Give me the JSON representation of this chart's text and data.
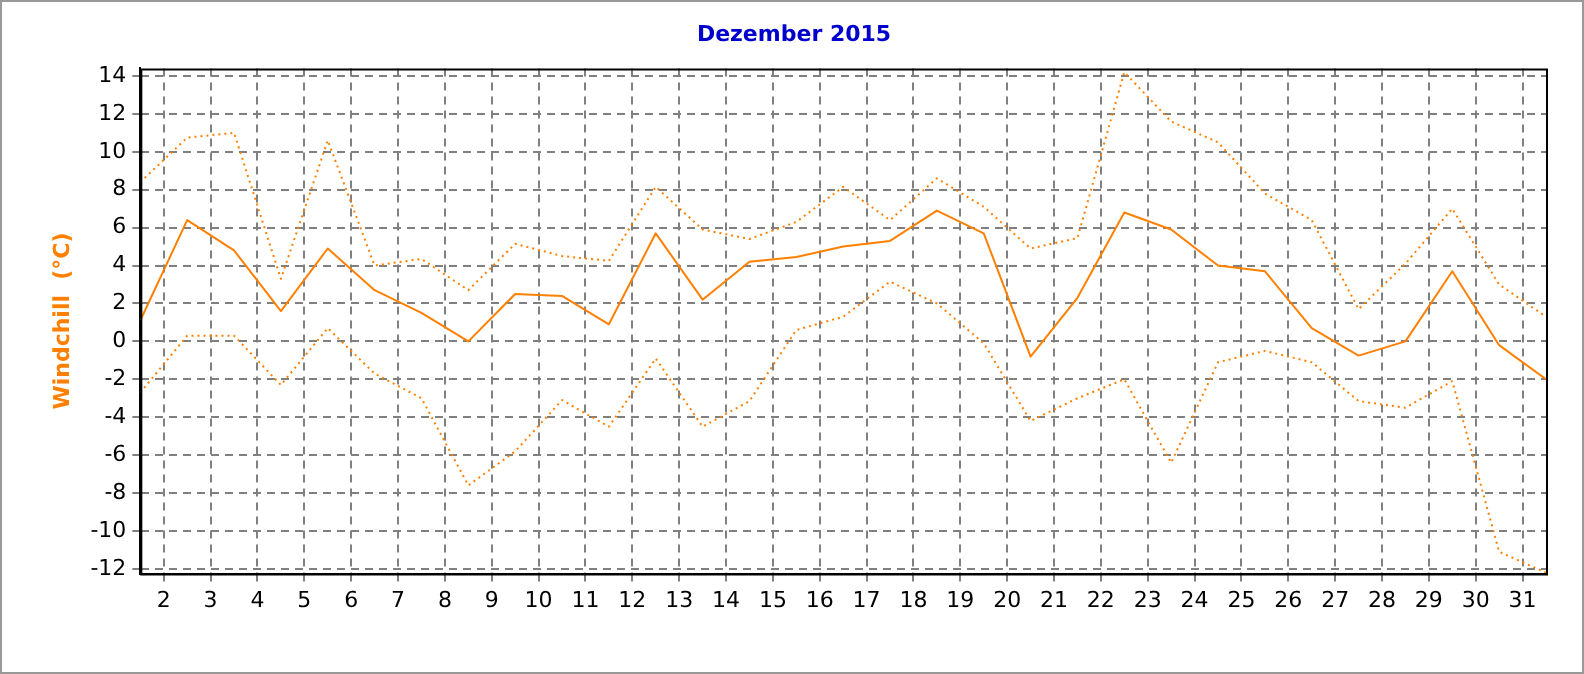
{
  "chart_data": {
    "type": "line",
    "title": "Dezember 2015",
    "ylabel": "Windchill  (°C)",
    "x": [
      1.5,
      2.5,
      3.5,
      4.5,
      5.5,
      6.5,
      7.5,
      8.5,
      9.5,
      10.5,
      11.5,
      12.5,
      13.5,
      14.5,
      15.5,
      16.5,
      17.5,
      18.5,
      19.5,
      20.5,
      21.5,
      22.5,
      23.5,
      24.5,
      25.5,
      26.5,
      27.5,
      28.5,
      29.5,
      30.5,
      31.5
    ],
    "series": [
      {
        "color": "#ff8000",
        "line_style": "dotted",
        "values": [
          8.4,
          10.75,
          11.0,
          3.3,
          10.6,
          4.0,
          4.35,
          2.7,
          5.15,
          4.5,
          4.25,
          8.15,
          5.9,
          5.4,
          6.3,
          8.15,
          6.4,
          8.6,
          7.1,
          4.9,
          5.45,
          14.2,
          11.6,
          10.5,
          7.8,
          6.4,
          1.7,
          4.1,
          7.0,
          3.0,
          1.3
        ]
      },
      {
        "color": "#ff8000",
        "line_style": "solid",
        "values": [
          1.1,
          6.4,
          4.8,
          1.6,
          4.9,
          2.7,
          1.5,
          0.0,
          2.5,
          2.4,
          0.9,
          5.7,
          2.2,
          4.2,
          4.45,
          5.0,
          5.3,
          6.9,
          5.7,
          -0.8,
          2.3,
          6.8,
          5.9,
          4.0,
          3.7,
          0.7,
          -0.75,
          0.0,
          3.7,
          -0.2,
          -2.0
        ]
      },
      {
        "color": "#ff8000",
        "line_style": "dotted",
        "values": [
          -2.7,
          0.3,
          0.3,
          -2.3,
          0.7,
          -1.7,
          -3.0,
          -7.6,
          -5.8,
          -3.1,
          -4.5,
          -0.9,
          -4.5,
          -3.15,
          0.6,
          1.3,
          3.15,
          2.0,
          -0.1,
          -4.2,
          -3.0,
          -2.0,
          -6.4,
          -1.1,
          -0.5,
          -1.1,
          -3.15,
          -3.5,
          -2.1,
          -11.1,
          -12.2
        ]
      }
    ],
    "xlim": [
      1.5,
      31.5
    ],
    "xticks": [
      2,
      3,
      4,
      5,
      6,
      7,
      8,
      9,
      10,
      11,
      12,
      13,
      14,
      15,
      16,
      17,
      18,
      19,
      20,
      21,
      22,
      23,
      24,
      25,
      26,
      27,
      28,
      29,
      30,
      31
    ],
    "ylim": [
      -12.25,
      14.4
    ],
    "yticks": [
      -12,
      -10,
      -8,
      -6,
      -4,
      -2,
      0,
      2,
      4,
      6,
      8,
      10,
      12,
      14
    ],
    "grid": true,
    "legend": false,
    "marker": "none"
  }
}
